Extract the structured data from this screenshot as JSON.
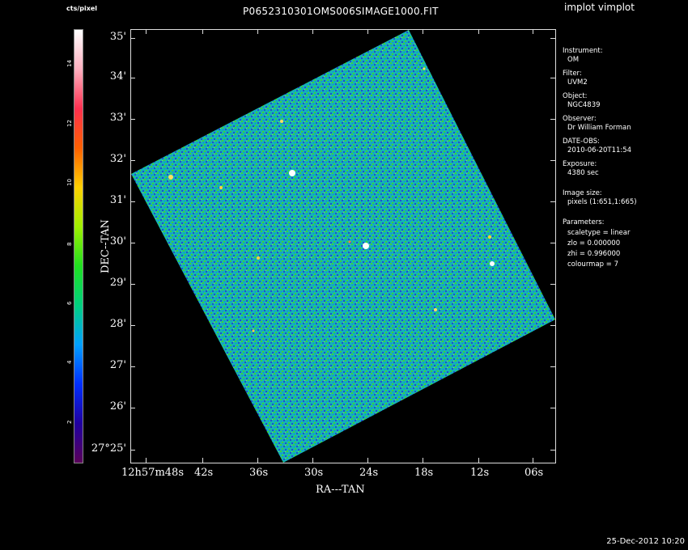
{
  "app": {
    "label": "implot vimplot"
  },
  "image": {
    "title": "P0652310301OMS006SIMAGE1000.FIT"
  },
  "footer": {
    "date": "25-Dec-2012 10:20"
  },
  "colorbar": {
    "label": "cts/pixel",
    "ticks": [
      "2",
      "4",
      "6",
      "8",
      "10",
      "12",
      "14"
    ],
    "gradient": [
      "#5a005a",
      "#2000a0",
      "#0030ff",
      "#00a0ff",
      "#00d080",
      "#20e020",
      "#a0f000",
      "#ffd000",
      "#ff6000",
      "#ff3050",
      "#ffb0c0",
      "#ffffff"
    ]
  },
  "axes": {
    "xlabel": "RA---TAN",
    "ylabel": "DEC--TAN",
    "y_ticks": [
      "35'",
      "34'",
      "33'",
      "32'",
      "31'",
      "30'",
      "29'",
      "28'",
      "27'",
      "26'",
      "27°25'"
    ],
    "x_ticks": [
      "12h57m48s",
      "42s",
      "36s",
      "30s",
      "24s",
      "18s",
      "12s",
      "06s"
    ]
  },
  "info": [
    {
      "head": "Instrument:",
      "value": "OM"
    },
    {
      "head": "Filter:",
      "value": "UVM2"
    },
    {
      "head": "Object:",
      "value": "NGC4839"
    },
    {
      "head": "Observer:",
      "value": "Dr William Forman"
    },
    {
      "head": "DATE-OBS:",
      "value": "2010-06-20T11:54"
    },
    {
      "head": "Exposure:",
      "value": "4380 sec"
    },
    {
      "head": "Image size:",
      "value": "pixels (1:651,1:665)"
    },
    {
      "head": "Parameters:",
      "lines": [
        "scaletype = linear",
        "zlo = 0.000000",
        "zhi = 0.996000",
        "colourmap = 7"
      ]
    }
  ],
  "colors": {
    "noise_blue": "#1f4fd0",
    "noise_teal": "#14b4b4",
    "noise_green": "#3cd23c"
  }
}
